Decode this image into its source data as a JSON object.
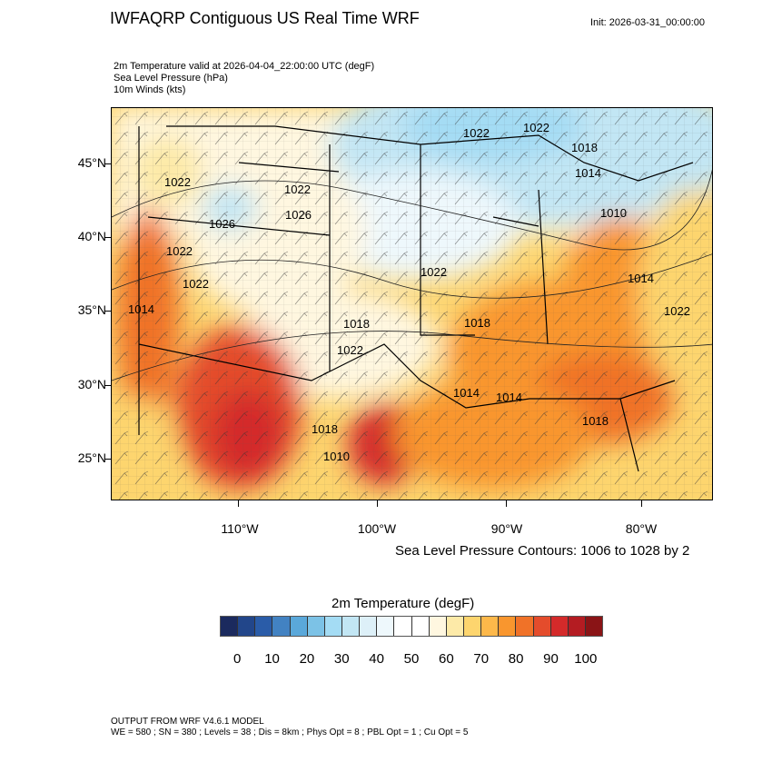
{
  "header": {
    "title": "IWFAQRP Contiguous US Real Time WRF",
    "init": "Init: 2026-03-31_00:00:00",
    "fields": [
      "2m Temperature valid at 2026-04-04_22:00:00 UTC   (degF)",
      "Sea Level Pressure   (hPa)",
      "10m Winds   (kts)"
    ]
  },
  "map": {
    "lat_labels": [
      "45°N",
      "40°N",
      "35°N",
      "30°N",
      "25°N"
    ],
    "lon_labels": [
      "110°W",
      "100°W",
      "90°W",
      "80°W"
    ],
    "pressure_labels": [
      "1022",
      "1022",
      "1018",
      "1014",
      "1010",
      "1022",
      "1022",
      "1026",
      "1026",
      "1022",
      "1022",
      "1018",
      "1022",
      "1018",
      "1022",
      "1014",
      "1014",
      "1018",
      "1022",
      "1014",
      "1010",
      "1018",
      "1014"
    ]
  },
  "slp_note": "Sea Level Pressure Contours: 1006 to 1028 by 2",
  "colorbar": {
    "title": "2m Temperature  (degF)",
    "labels": [
      "0",
      "10",
      "20",
      "30",
      "40",
      "50",
      "60",
      "70",
      "80",
      "90",
      "100"
    ],
    "colors": [
      "#1b2a5e",
      "#22468a",
      "#2a5ca8",
      "#4282c2",
      "#5aa8da",
      "#7cc2e6",
      "#a4dcf4",
      "#c2e6f4",
      "#ddf0f8",
      "#eef8fc",
      "#ffffff",
      "#ffffff",
      "#fff7e0",
      "#fdeaa8",
      "#fdd56e",
      "#fdb84a",
      "#f9962e",
      "#f07228",
      "#e44c2c",
      "#d42a2a",
      "#b41c22",
      "#8a1416"
    ]
  },
  "footer": {
    "line1": "OUTPUT FROM WRF V4.6.1 MODEL",
    "line2": "WE = 580 ; SN = 380 ; Levels = 38 ; Dis = 8km ; Phys Opt = 8 ; PBL Opt = 1 ; Cu Opt = 5"
  }
}
